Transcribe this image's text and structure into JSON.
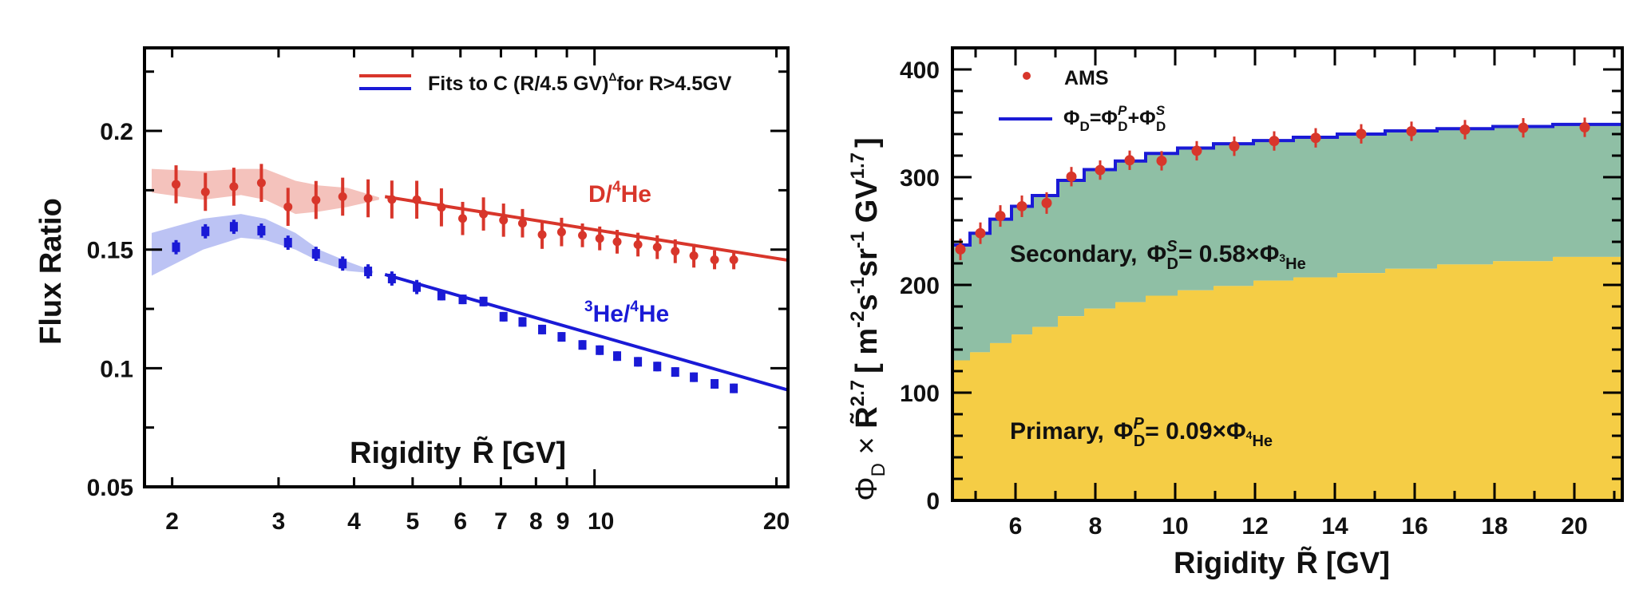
{
  "chart_data": [
    {
      "type": "line",
      "title": "",
      "xlabel": "Rigidity R̃ [GV]",
      "ylabel": "Flux Ratio",
      "xscale": "log",
      "xlim": [
        1.8,
        20.9
      ],
      "ylim": [
        0.05,
        0.235
      ],
      "xticks": [
        2,
        3,
        4,
        5,
        6,
        7,
        8,
        9,
        10,
        20
      ],
      "xtick_labels": [
        "2",
        "3",
        "4",
        "5",
        "6",
        "7",
        "8",
        "9",
        "10",
        "20"
      ],
      "yticks": [
        0.05,
        0.1,
        0.15,
        0.2
      ],
      "ytick_labels": [
        "0.05",
        "0.1",
        "0.15",
        "0.2"
      ],
      "legend": {
        "position": "top-right",
        "entries": [
          {
            "label": "Fits to C (R/4.5 GV)",
            "superscript": "Δ",
            "suffix": " for R>4.5GV",
            "colors": [
              "#d8362b",
              "#1a1ad6"
            ]
          }
        ]
      },
      "fit_threshold_gv": 4.5,
      "x": [
        2.03,
        2.27,
        2.53,
        2.81,
        3.11,
        3.46,
        3.83,
        4.22,
        4.62,
        5.08,
        5.58,
        6.05,
        6.55,
        7.07,
        7.6,
        8.19,
        8.82,
        9.55,
        10.2,
        10.9,
        11.8,
        12.7,
        13.6,
        14.6,
        15.8,
        17.0
      ],
      "series": [
        {
          "name": "D/4He",
          "label_main": "D/",
          "label_sup": "4",
          "label_tail": "He",
          "color": "#d8362b",
          "band_color": "#f2b7b0",
          "values": [
            0.1775,
            0.1743,
            0.1765,
            0.1781,
            0.168,
            0.1709,
            0.1723,
            0.1716,
            0.1711,
            0.171,
            0.1678,
            0.1631,
            0.165,
            0.1624,
            0.1611,
            0.1563,
            0.1574,
            0.156,
            0.1547,
            0.1533,
            0.1521,
            0.151,
            0.1493,
            0.1474,
            0.1457,
            0.1457
          ],
          "errors": [
            0.008,
            0.008,
            0.008,
            0.008,
            0.008,
            0.008,
            0.008,
            0.008,
            0.008,
            0.008,
            0.008,
            0.007,
            0.007,
            0.007,
            0.006,
            0.006,
            0.006,
            0.005,
            0.005,
            0.005,
            0.005,
            0.005,
            0.005,
            0.005,
            0.004,
            0.004
          ],
          "band_x": [
            1.85,
            2.25,
            2.6,
            2.85,
            3.2,
            3.5,
            3.9,
            4.4
          ],
          "band_upper": [
            0.184,
            0.183,
            0.184,
            0.184,
            0.179,
            0.177,
            0.176,
            0.172
          ],
          "band_lower": [
            0.174,
            0.171,
            0.173,
            0.171,
            0.165,
            0.166,
            0.168,
            0.171
          ],
          "fit": {
            "x_start": 4.5,
            "x_end": 20.9,
            "y_start": 0.1723,
            "y_end": 0.1455
          }
        },
        {
          "name": "3He/4He",
          "label_pre_sup": "3",
          "label_main": "He/",
          "label_sup": "4",
          "label_tail": "He",
          "color": "#1a1ad6",
          "band_color": "#b0b8f2",
          "values": [
            0.151,
            0.1577,
            0.1596,
            0.158,
            0.1529,
            0.1482,
            0.1441,
            0.1408,
            0.1378,
            0.1342,
            0.1306,
            0.129,
            0.1281,
            0.1217,
            0.1195,
            0.1163,
            0.1132,
            0.1098,
            0.1076,
            0.1051,
            0.1027,
            0.1007,
            0.0984,
            0.0962,
            0.0934,
            0.0915
          ],
          "errors": [
            0.003,
            0.003,
            0.003,
            0.003,
            0.003,
            0.003,
            0.003,
            0.003,
            0.003,
            0.003,
            0.002,
            0.002,
            0.002,
            0.002,
            0.002,
            0.002,
            0.002,
            0.002,
            0.002,
            0.002,
            0.002,
            0.002,
            0.002,
            0.002,
            0.002,
            0.002
          ],
          "band_x": [
            1.85,
            2.25,
            2.6,
            2.85,
            3.2,
            3.5,
            3.9,
            4.3
          ],
          "band_upper": [
            0.157,
            0.163,
            0.165,
            0.163,
            0.157,
            0.15,
            0.145,
            0.141
          ],
          "band_lower": [
            0.139,
            0.15,
            0.155,
            0.154,
            0.15,
            0.145,
            0.141,
            0.14
          ],
          "fit": {
            "x_start": 4.5,
            "x_end": 20.9,
            "y_start": 0.1395,
            "y_end": 0.0908
          }
        }
      ]
    },
    {
      "type": "area",
      "title": "",
      "xlabel": "Rigidity R̃ [GV]",
      "ylabel": "ΦD × R̃^2.7 [ m^-2 s^-1 sr^-1 GV^1.7 ]",
      "xscale": "linear",
      "xlim": [
        4.42,
        21.2
      ],
      "ylim": [
        0,
        420
      ],
      "xticks": [
        6,
        8,
        10,
        12,
        14,
        16,
        18,
        20
      ],
      "xtick_labels": [
        "6",
        "8",
        "10",
        "12",
        "14",
        "16",
        "18",
        "20"
      ],
      "yticks": [
        0,
        100,
        200,
        300,
        400
      ],
      "ytick_labels": [
        "0",
        "100",
        "200",
        "300",
        "400"
      ],
      "legend": {
        "position": "top-left",
        "entries": [
          {
            "label": "AMS",
            "type": "marker",
            "color": "#d8362b"
          },
          {
            "label": "ΦD=ΦDP+ΦDS",
            "type": "line",
            "color": "#1a1ad6"
          }
        ]
      },
      "bin_edges": [
        4.42,
        4.86,
        5.36,
        5.9,
        6.42,
        7.06,
        7.72,
        8.5,
        9.26,
        10.06,
        10.96,
        11.96,
        12.96,
        14.06,
        15.26,
        16.56,
        17.96,
        19.46,
        21.2
      ],
      "series": [
        {
          "name": "Primary",
          "label": "Primary,",
          "formula": "= 0.09×Φ",
          "formula_sub": "4He",
          "color": "#f5cd45",
          "values": [
            130,
            137.5,
            146,
            154,
            161,
            171,
            178,
            184,
            190,
            195,
            199,
            204,
            207,
            211,
            215,
            219,
            222,
            226
          ]
        },
        {
          "name": "Secondary",
          "label": "Secondary,",
          "formula": "= 0.58×Φ",
          "formula_sub": "3He",
          "color": "#8fbfa5",
          "values": [
            107,
            110.5,
            115,
            119,
            122,
            126,
            129,
            131,
            132,
            132,
            132,
            130,
            130,
            129,
            128,
            126,
            125,
            123
          ]
        },
        {
          "name": "Total ΦD",
          "color": "#1a1ad6",
          "type": "step",
          "values": [
            237,
            248,
            261,
            273,
            283,
            297,
            307,
            315,
            322,
            327,
            331,
            334,
            337,
            340,
            343,
            345,
            347,
            349
          ]
        }
      ],
      "ams_points": {
        "color": "#d8362b",
        "x": [
          4.62,
          5.12,
          5.62,
          6.16,
          6.78,
          7.4,
          8.12,
          8.86,
          9.66,
          10.54,
          11.48,
          12.48,
          13.52,
          14.66,
          15.92,
          17.26,
          18.72,
          20.26
        ],
        "y": [
          233,
          248,
          264,
          273,
          276,
          300.5,
          306.6,
          315.7,
          315.2,
          324.5,
          328.7,
          333.6,
          336.5,
          340.2,
          342.6,
          344.1,
          345.8,
          346.3
        ],
        "errors": [
          10,
          10,
          10,
          10,
          10,
          9,
          9,
          9,
          9,
          9,
          9,
          9,
          9,
          9,
          9,
          9,
          9,
          9
        ]
      }
    }
  ],
  "left": {
    "ylabel": "Flux Ratio",
    "xlabel_main": "Rigidity",
    "xlabel_sym": "R̃",
    "xlabel_unit": "[GV]",
    "legend_text": "Fits to C (R/4.5 GV)",
    "legend_sup": "Δ",
    "legend_tail": "for R>4.5GV",
    "series_label_d": "D/",
    "series_label_d_sup": "4",
    "series_label_d_tail": "He",
    "series_label_he_pre": "3",
    "series_label_he_main": "He/",
    "series_label_he_sup": "4",
    "series_label_he_tail": "He"
  },
  "right": {
    "ylabel_phi": "Φ",
    "ylabel_sub": "D",
    "ylabel_times": " × ",
    "ylabel_r": "R̃",
    "ylabel_r_sup": "2.7",
    "ylabel_units": "[ m",
    "ylabel_m_sup": "-2",
    "ylabel_s": "s",
    "ylabel_s_sup": "-1",
    "ylabel_sr": "sr",
    "ylabel_sr_sup": "-1",
    "ylabel_gv": " GV",
    "ylabel_gv_sup": "1.7",
    "ylabel_close": "]",
    "xlabel_main": "Rigidity",
    "xlabel_sym": "R̃",
    "xlabel_unit": "[GV]",
    "legend_ams": "AMS",
    "legend_phi": "Φ",
    "legend_sub_d": "D",
    "legend_eq": "=Φ",
    "legend_sup_p": "P",
    "legend_plus": "+Φ",
    "legend_sup_s": "S",
    "secondary_label": "Secondary,",
    "secondary_phi": "Φ",
    "secondary_sup": "S",
    "secondary_sub": "D",
    "secondary_formula": "= 0.58×Φ",
    "secondary_sub_iso": "3",
    "secondary_sub_he": "He",
    "primary_label": "Primary,",
    "primary_phi": "Φ",
    "primary_sup": "P",
    "primary_sub": "D",
    "primary_formula": "= 0.09×Φ",
    "primary_sub_iso": "4",
    "primary_sub_he": "He"
  }
}
